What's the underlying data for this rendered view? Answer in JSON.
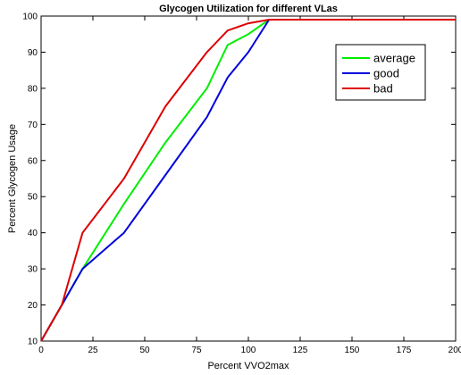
{
  "chart_data": {
    "type": "line",
    "title": "Glycogen Utilization for different VLas",
    "xlabel": "Percent VVO2max",
    "ylabel": "Percent Glycogen Usage",
    "xlim": [
      0,
      200
    ],
    "ylim": [
      10,
      100
    ],
    "x_ticks": [
      0,
      25,
      50,
      75,
      100,
      125,
      150,
      175,
      200
    ],
    "x_tick_labels": [
      "0",
      "25",
      "50",
      "75",
      "100",
      "125",
      "150",
      "175",
      "200"
    ],
    "y_ticks": [
      10,
      20,
      30,
      40,
      50,
      60,
      70,
      80,
      90,
      100
    ],
    "y_tick_labels": [
      "10",
      "20",
      "30",
      "40",
      "50",
      "60",
      "70",
      "80",
      "90",
      "100"
    ],
    "grid": false,
    "legend_position": "top-right",
    "series": [
      {
        "name": "average",
        "color": "#00ee00",
        "x": [
          0,
          10,
          20,
          40,
          60,
          80,
          90,
          100,
          110,
          200
        ],
        "y": [
          10,
          20,
          30,
          48,
          65,
          80,
          92,
          95,
          99,
          99
        ]
      },
      {
        "name": "good",
        "color": "#0000dd",
        "x": [
          0,
          10,
          20,
          40,
          60,
          80,
          90,
          100,
          110,
          200
        ],
        "y": [
          10,
          20,
          30,
          40,
          56,
          72,
          83,
          90,
          99,
          99
        ]
      },
      {
        "name": "bad",
        "color": "#dd0000",
        "x": [
          0,
          10,
          20,
          40,
          60,
          80,
          90,
          100,
          110,
          200
        ],
        "y": [
          10,
          20,
          40,
          55,
          75,
          90,
          96,
          98,
          99,
          99
        ]
      }
    ]
  }
}
